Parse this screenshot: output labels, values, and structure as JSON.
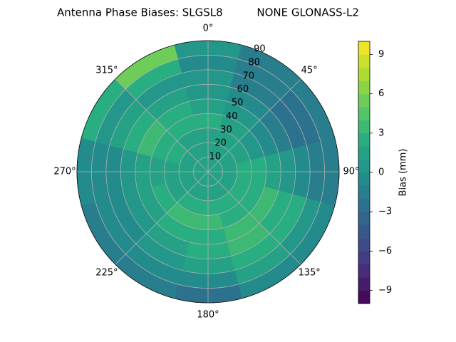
{
  "chart_data": {
    "type": "polar-contour",
    "title": "Antenna Phase Biases: SLGSL8          NONE GLONASS-L2",
    "colorbar_label": "Bias (mm)",
    "azimuth": [
      0,
      30,
      60,
      90,
      120,
      150,
      180,
      210,
      240,
      270,
      300,
      330
    ],
    "radius": [
      5,
      15,
      25,
      35,
      45,
      55,
      65,
      75,
      85
    ],
    "values": [
      [
        1,
        1,
        1,
        2,
        1,
        0,
        0,
        -1,
        0
      ],
      [
        1,
        1,
        1,
        1,
        0,
        -1,
        -2,
        -2,
        -2
      ],
      [
        1,
        1,
        1,
        0,
        -1,
        -2,
        -3,
        -3,
        -2
      ],
      [
        1,
        1,
        2,
        2,
        1,
        0,
        -1,
        -2,
        -2
      ],
      [
        1,
        1,
        2,
        2,
        3,
        2,
        2,
        0,
        -1
      ],
      [
        1,
        1,
        2,
        2,
        3,
        3,
        2,
        1,
        -1
      ],
      [
        1,
        1,
        2,
        3,
        2,
        2,
        1,
        -1,
        -3
      ],
      [
        1,
        1,
        2,
        3,
        2,
        1,
        0,
        -1,
        -2
      ],
      [
        1,
        1,
        1,
        2,
        1,
        0,
        -1,
        -1,
        -2
      ],
      [
        1,
        1,
        1,
        1,
        1,
        0,
        -1,
        -1,
        -1
      ],
      [
        1,
        1,
        2,
        2,
        3,
        2,
        1,
        0,
        2
      ],
      [
        1,
        1,
        1,
        2,
        2,
        1,
        0,
        2,
        5
      ]
    ],
    "rlim": [
      0,
      90
    ],
    "rticks": [
      10,
      20,
      30,
      40,
      50,
      60,
      70,
      80,
      90
    ],
    "thetaticks": [
      {
        "value": 0,
        "label": "0°"
      },
      {
        "value": 45,
        "label": "45°"
      },
      {
        "value": 90,
        "label": "90°"
      },
      {
        "value": 135,
        "label": "135°"
      },
      {
        "value": 180,
        "label": "180°"
      },
      {
        "value": 225,
        "label": "225°"
      },
      {
        "value": 270,
        "label": "270°"
      },
      {
        "value": 315,
        "label": "315°"
      }
    ],
    "clim": [
      -10,
      10
    ],
    "level_step": 1,
    "cticks": [
      {
        "value": -9,
        "label": "−9"
      },
      {
        "value": -6,
        "label": "−6"
      },
      {
        "value": -3,
        "label": "−3"
      },
      0,
      3,
      6,
      9
    ],
    "colormap": [
      "#440154",
      "#472d7b",
      "#3b528b",
      "#2c728e",
      "#21918c",
      "#28ae80",
      "#5ec962",
      "#addc30",
      "#fde725"
    ],
    "grid": true
  }
}
